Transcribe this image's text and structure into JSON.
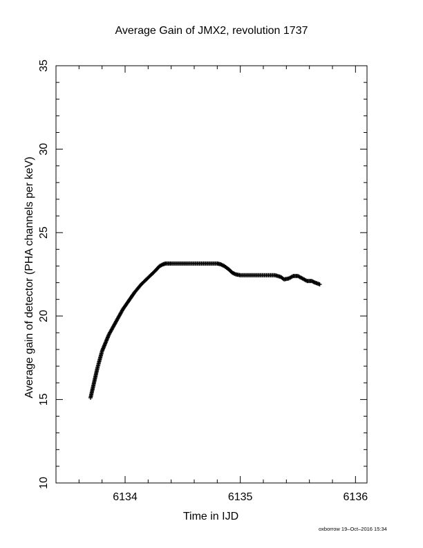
{
  "chart_data": {
    "type": "scatter",
    "title": "Average Gain of JMX2, revolution 1737",
    "xlabel": "Time in IJD",
    "ylabel": "Average gain of detector (PHA channels per keV)",
    "xlim": [
      6133.4,
      6136.1
    ],
    "ylim": [
      10,
      35
    ],
    "xticks": [
      6134,
      6135,
      6136
    ],
    "yticks": [
      10,
      15,
      20,
      25,
      30,
      35
    ],
    "marker": "plus",
    "color": "#000000",
    "series": [
      {
        "x": [
          6133.7,
          6133.72,
          6133.74,
          6133.76,
          6133.78,
          6133.8,
          6133.83,
          6133.86,
          6133.9,
          6133.94,
          6133.98,
          6134.03,
          6134.08,
          6134.14,
          6134.2,
          6134.26,
          6134.3,
          6134.33,
          6134.35,
          6134.4,
          6134.5,
          6134.6,
          6134.7,
          6134.8,
          6134.83,
          6134.86,
          6134.9,
          6134.93,
          6134.96,
          6135.0,
          6135.1,
          6135.2,
          6135.3,
          6135.35,
          6135.38,
          6135.42,
          6135.46,
          6135.5,
          6135.54,
          6135.58,
          6135.62,
          6135.65,
          6135.69
        ],
        "y": [
          15.1,
          15.7,
          16.3,
          16.9,
          17.4,
          17.9,
          18.4,
          18.9,
          19.4,
          19.9,
          20.4,
          20.9,
          21.4,
          21.9,
          22.3,
          22.7,
          23.0,
          23.1,
          23.15,
          23.15,
          23.15,
          23.15,
          23.15,
          23.15,
          23.1,
          23.0,
          22.8,
          22.6,
          22.5,
          22.45,
          22.45,
          22.45,
          22.45,
          22.35,
          22.2,
          22.25,
          22.4,
          22.4,
          22.25,
          22.1,
          22.1,
          22.0,
          21.9
        ]
      }
    ]
  },
  "footer": "oxborrow 19–Oct–2016 15:34"
}
